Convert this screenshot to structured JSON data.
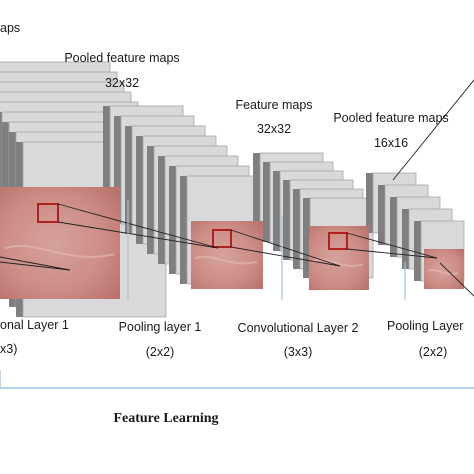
{
  "diagram": {
    "top_labels": {
      "fm1_title_fragment": "aps",
      "pooled1_title": "Pooled feature maps",
      "pooled1_size": "32x32",
      "fm2_title": "Feature maps",
      "fm2_size": "32x32",
      "pooled2_title": "Pooled feature maps",
      "pooled2_size": "16x16"
    },
    "layers": [
      {
        "name": "onal Layer 1",
        "kernel": "x3)"
      },
      {
        "name": "Pooling layer 1",
        "kernel": "(2x2)"
      },
      {
        "name": "Convolutional Layer 2",
        "kernel": "(3x3)"
      },
      {
        "name": "Pooling Layer",
        "kernel": "(2x2)"
      }
    ],
    "section_label": "Feature Learning"
  },
  "colors": {
    "map_face": "#d9d9d9",
    "map_dark": "#7f7f7f",
    "map_edge": "#a6a6a6",
    "tissue": "#cd8d86",
    "patch_border": "#b02020",
    "connector_line": "#222222",
    "divider_line": "#9dc3e6"
  }
}
